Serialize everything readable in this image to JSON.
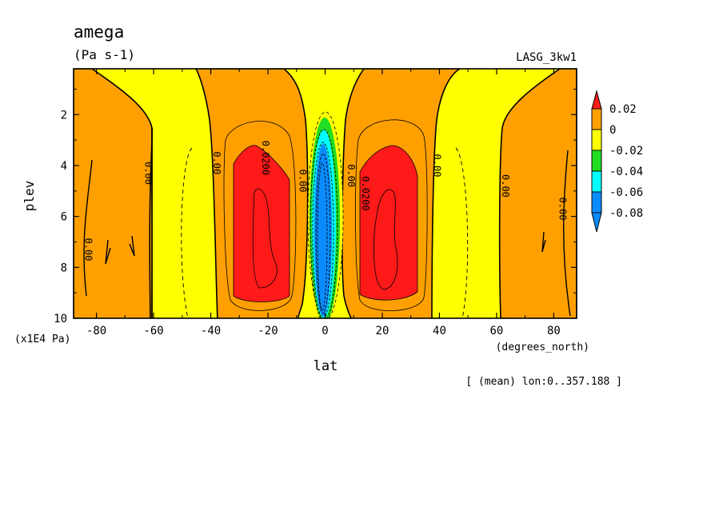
{
  "chart_data": {
    "type": "heatmap",
    "variable": "amega",
    "units": "(Pa s-1)",
    "case_name": "LASG_3kw1",
    "xlabel": "lat",
    "x_units": "(degrees_north)",
    "ylabel": "plev",
    "y_units": "(x1E4 Pa)",
    "footnote": "[ (mean) lon:0..357.188 ]",
    "xlim": [
      -88,
      88
    ],
    "ylim": [
      10,
      0.2
    ],
    "x_ticks": [
      -80,
      -60,
      -40,
      -20,
      0,
      20,
      40,
      60,
      80
    ],
    "x_tick_labels": [
      "-80",
      "-60",
      "-40",
      "-20",
      "0",
      "20",
      "40",
      "60",
      "80"
    ],
    "y_ticks": [
      2,
      4,
      6,
      8,
      10
    ],
    "y_tick_labels": [
      "2",
      "4",
      "6",
      "8",
      "10"
    ],
    "colorbar": {
      "levels": [
        -0.08,
        -0.06,
        -0.04,
        -0.02,
        0,
        0.02
      ],
      "tick_labels": [
        "0.02",
        "0",
        "-0.02",
        "-0.04",
        "-0.06",
        "-0.08"
      ],
      "colors": {
        "gt_0.02": "#ff1a1a",
        "0_to_0.02": "#ffa000",
        "m0.02_to_0": "#ffff00",
        "m0.04_to_m0.02": "#22dd22",
        "m0.06_to_m0.04": "#00ffff",
        "m0.08_to_m0.06": "#0a8cff",
        "lt_m0.08": "#0a8cff"
      }
    },
    "contour_labels": [
      {
        "text": "0.00",
        "lat": -84,
        "plev": 7.3
      },
      {
        "text": "0.00",
        "lat": -63,
        "plev": 4.3
      },
      {
        "text": "0.00",
        "lat": -39,
        "plev": 3.9
      },
      {
        "text": "0.0200",
        "lat": -22,
        "plev": 3.7
      },
      {
        "text": "0.00",
        "lat": -9,
        "plev": 4.6
      },
      {
        "text": "0.00",
        "lat": 8,
        "plev": 4.4
      },
      {
        "text": "0.0200",
        "lat": 13,
        "plev": 5.1
      },
      {
        "text": "0.00",
        "lat": 38,
        "plev": 4.0
      },
      {
        "text": "0.00",
        "lat": 62,
        "plev": 4.8
      },
      {
        "text": "0.00",
        "lat": 82,
        "plev": 5.7
      }
    ],
    "regions": [
      {
        "name": "south-positive-region",
        "level": "0_to_0.02",
        "lat_range": [
          -88,
          -60
        ]
      },
      {
        "name": "south-subtropical-positive",
        "level": "0_to_0.02",
        "lat_range": [
          -40,
          -5
        ]
      },
      {
        "name": "south-strong-descent",
        "level": "gt_0.02",
        "lat_range": [
          -36,
          -11
        ]
      },
      {
        "name": "equatorial-ascent",
        "level": "lt_m0.08",
        "lat_range": [
          -4,
          5
        ]
      },
      {
        "name": "north-subtropical-positive",
        "level": "0_to_0.02",
        "lat_range": [
          6,
          42
        ]
      },
      {
        "name": "north-strong-descent",
        "level": "gt_0.02",
        "lat_range": [
          11,
          35
        ]
      },
      {
        "name": "north-positive-region",
        "level": "0_to_0.02",
        "lat_range": [
          60,
          88
        ]
      }
    ]
  }
}
